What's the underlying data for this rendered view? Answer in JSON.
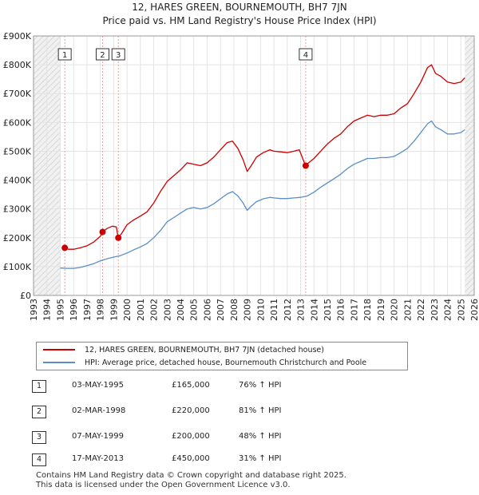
{
  "chart_data": {
    "type": "line",
    "title": "12, HARES GREEN, BOURNEMOUTH, BH7 7JN",
    "subtitle": "Price paid vs. HM Land Registry's House Price Index (HPI)",
    "xlabel": "",
    "ylabel": "",
    "xlim": [
      1993,
      2026
    ],
    "ylim": [
      0,
      900000
    ],
    "x_ticks": [
      "1993",
      "1994",
      "1995",
      "1996",
      "1997",
      "1998",
      "1999",
      "2000",
      "2001",
      "2002",
      "2003",
      "2004",
      "2005",
      "2006",
      "2007",
      "2008",
      "2009",
      "2010",
      "2011",
      "2012",
      "2013",
      "2014",
      "2015",
      "2016",
      "2017",
      "2018",
      "2019",
      "2020",
      "2021",
      "2022",
      "2023",
      "2024",
      "2025",
      "2026"
    ],
    "y_ticks": [
      {
        "value": 0,
        "label": "£0"
      },
      {
        "value": 100000,
        "label": "£100K"
      },
      {
        "value": 200000,
        "label": "£200K"
      },
      {
        "value": 300000,
        "label": "£300K"
      },
      {
        "value": 400000,
        "label": "£400K"
      },
      {
        "value": 500000,
        "label": "£500K"
      },
      {
        "value": 600000,
        "label": "£600K"
      },
      {
        "value": 700000,
        "label": "£700K"
      },
      {
        "value": 800000,
        "label": "£800K"
      },
      {
        "value": 900000,
        "label": "£900K"
      }
    ],
    "grid": true,
    "hatched_ranges": [
      [
        1993,
        1995.0
      ],
      [
        2025.3,
        2026
      ]
    ],
    "series": [
      {
        "name": "12, HARES GREEN, BOURNEMOUTH, BH7 7JN (detached house)",
        "color": "#cc0000",
        "points": [
          [
            1995.34,
            165000
          ],
          [
            1995.6,
            160000
          ],
          [
            1996.0,
            160000
          ],
          [
            1996.5,
            165000
          ],
          [
            1997.0,
            172000
          ],
          [
            1997.5,
            185000
          ],
          [
            1998.0,
            205000
          ],
          [
            1998.17,
            220000
          ],
          [
            1998.5,
            232000
          ],
          [
            1998.9,
            240000
          ],
          [
            1999.2,
            238000
          ],
          [
            1999.34,
            200000
          ],
          [
            1999.6,
            215000
          ],
          [
            2000.0,
            245000
          ],
          [
            2000.5,
            262000
          ],
          [
            2001.0,
            275000
          ],
          [
            2001.5,
            290000
          ],
          [
            2002.0,
            320000
          ],
          [
            2002.5,
            360000
          ],
          [
            2003.0,
            395000
          ],
          [
            2003.5,
            415000
          ],
          [
            2004.0,
            435000
          ],
          [
            2004.5,
            460000
          ],
          [
            2005.0,
            455000
          ],
          [
            2005.5,
            450000
          ],
          [
            2006.0,
            460000
          ],
          [
            2006.5,
            480000
          ],
          [
            2007.0,
            505000
          ],
          [
            2007.5,
            530000
          ],
          [
            2007.9,
            535000
          ],
          [
            2008.3,
            510000
          ],
          [
            2008.7,
            470000
          ],
          [
            2009.0,
            430000
          ],
          [
            2009.3,
            450000
          ],
          [
            2009.7,
            480000
          ],
          [
            2010.2,
            495000
          ],
          [
            2010.7,
            505000
          ],
          [
            2011.0,
            500000
          ],
          [
            2011.5,
            498000
          ],
          [
            2012.0,
            495000
          ],
          [
            2012.5,
            500000
          ],
          [
            2012.9,
            505000
          ],
          [
            2013.37,
            450000
          ],
          [
            2013.6,
            460000
          ],
          [
            2014.0,
            475000
          ],
          [
            2014.5,
            500000
          ],
          [
            2015.0,
            525000
          ],
          [
            2015.5,
            545000
          ],
          [
            2016.0,
            560000
          ],
          [
            2016.5,
            585000
          ],
          [
            2017.0,
            605000
          ],
          [
            2017.5,
            615000
          ],
          [
            2018.0,
            625000
          ],
          [
            2018.5,
            620000
          ],
          [
            2019.0,
            625000
          ],
          [
            2019.5,
            625000
          ],
          [
            2020.0,
            630000
          ],
          [
            2020.5,
            650000
          ],
          [
            2021.0,
            665000
          ],
          [
            2021.5,
            700000
          ],
          [
            2022.0,
            740000
          ],
          [
            2022.5,
            790000
          ],
          [
            2022.8,
            800000
          ],
          [
            2023.1,
            770000
          ],
          [
            2023.5,
            760000
          ],
          [
            2024.0,
            740000
          ],
          [
            2024.5,
            735000
          ],
          [
            2025.0,
            740000
          ],
          [
            2025.3,
            755000
          ]
        ],
        "sales": [
          {
            "label": "1",
            "x": 1995.34,
            "y": 165000
          },
          {
            "label": "2",
            "x": 1998.17,
            "y": 220000
          },
          {
            "label": "3",
            "x": 1999.35,
            "y": 200000
          },
          {
            "label": "4",
            "x": 2013.38,
            "y": 450000
          }
        ]
      },
      {
        "name": "HPI: Average price, detached house, Bournemouth Christchurch and Poole",
        "color": "#5b8ec6",
        "points": [
          [
            1995.0,
            95000
          ],
          [
            1995.5,
            94000
          ],
          [
            1996.0,
            94000
          ],
          [
            1996.5,
            97000
          ],
          [
            1997.0,
            103000
          ],
          [
            1997.5,
            110000
          ],
          [
            1998.0,
            120000
          ],
          [
            1998.5,
            127000
          ],
          [
            1999.0,
            133000
          ],
          [
            1999.5,
            138000
          ],
          [
            2000.0,
            147000
          ],
          [
            2000.5,
            158000
          ],
          [
            2001.0,
            168000
          ],
          [
            2001.5,
            180000
          ],
          [
            2002.0,
            200000
          ],
          [
            2002.5,
            225000
          ],
          [
            2003.0,
            255000
          ],
          [
            2003.5,
            270000
          ],
          [
            2004.0,
            285000
          ],
          [
            2004.5,
            300000
          ],
          [
            2005.0,
            305000
          ],
          [
            2005.5,
            300000
          ],
          [
            2006.0,
            305000
          ],
          [
            2006.5,
            318000
          ],
          [
            2007.0,
            335000
          ],
          [
            2007.5,
            352000
          ],
          [
            2007.9,
            360000
          ],
          [
            2008.3,
            345000
          ],
          [
            2008.7,
            320000
          ],
          [
            2009.0,
            295000
          ],
          [
            2009.3,
            310000
          ],
          [
            2009.7,
            325000
          ],
          [
            2010.2,
            335000
          ],
          [
            2010.7,
            340000
          ],
          [
            2011.0,
            338000
          ],
          [
            2011.5,
            336000
          ],
          [
            2012.0,
            336000
          ],
          [
            2012.5,
            338000
          ],
          [
            2013.0,
            340000
          ],
          [
            2013.5,
            345000
          ],
          [
            2014.0,
            358000
          ],
          [
            2014.5,
            375000
          ],
          [
            2015.0,
            390000
          ],
          [
            2015.5,
            405000
          ],
          [
            2016.0,
            420000
          ],
          [
            2016.5,
            440000
          ],
          [
            2017.0,
            455000
          ],
          [
            2017.5,
            465000
          ],
          [
            2018.0,
            475000
          ],
          [
            2018.5,
            475000
          ],
          [
            2019.0,
            478000
          ],
          [
            2019.5,
            478000
          ],
          [
            2020.0,
            482000
          ],
          [
            2020.5,
            495000
          ],
          [
            2021.0,
            510000
          ],
          [
            2021.5,
            535000
          ],
          [
            2022.0,
            565000
          ],
          [
            2022.5,
            595000
          ],
          [
            2022.8,
            605000
          ],
          [
            2023.1,
            585000
          ],
          [
            2023.5,
            575000
          ],
          [
            2024.0,
            560000
          ],
          [
            2024.5,
            560000
          ],
          [
            2025.0,
            565000
          ],
          [
            2025.3,
            575000
          ]
        ]
      }
    ]
  },
  "legend": {
    "items": [
      {
        "label": "12, HARES GREEN, BOURNEMOUTH, BH7 7JN (detached house)",
        "color": "#cc0000"
      },
      {
        "label": "HPI: Average price, detached house, Bournemouth Christchurch and Poole",
        "color": "#5b8ec6"
      }
    ]
  },
  "sales_table": [
    {
      "num": "1",
      "date": "03-MAY-1995",
      "price": "£165,000",
      "hpi": "76% ↑ HPI"
    },
    {
      "num": "2",
      "date": "02-MAR-1998",
      "price": "£220,000",
      "hpi": "81% ↑ HPI"
    },
    {
      "num": "3",
      "date": "07-MAY-1999",
      "price": "£200,000",
      "hpi": "48% ↑ HPI"
    },
    {
      "num": "4",
      "date": "17-MAY-2013",
      "price": "£450,000",
      "hpi": "31% ↑ HPI"
    }
  ],
  "footer": {
    "line1": "Contains HM Land Registry data © Crown copyright and database right 2025.",
    "line2": "This data is licensed under the Open Government Licence v3.0."
  }
}
